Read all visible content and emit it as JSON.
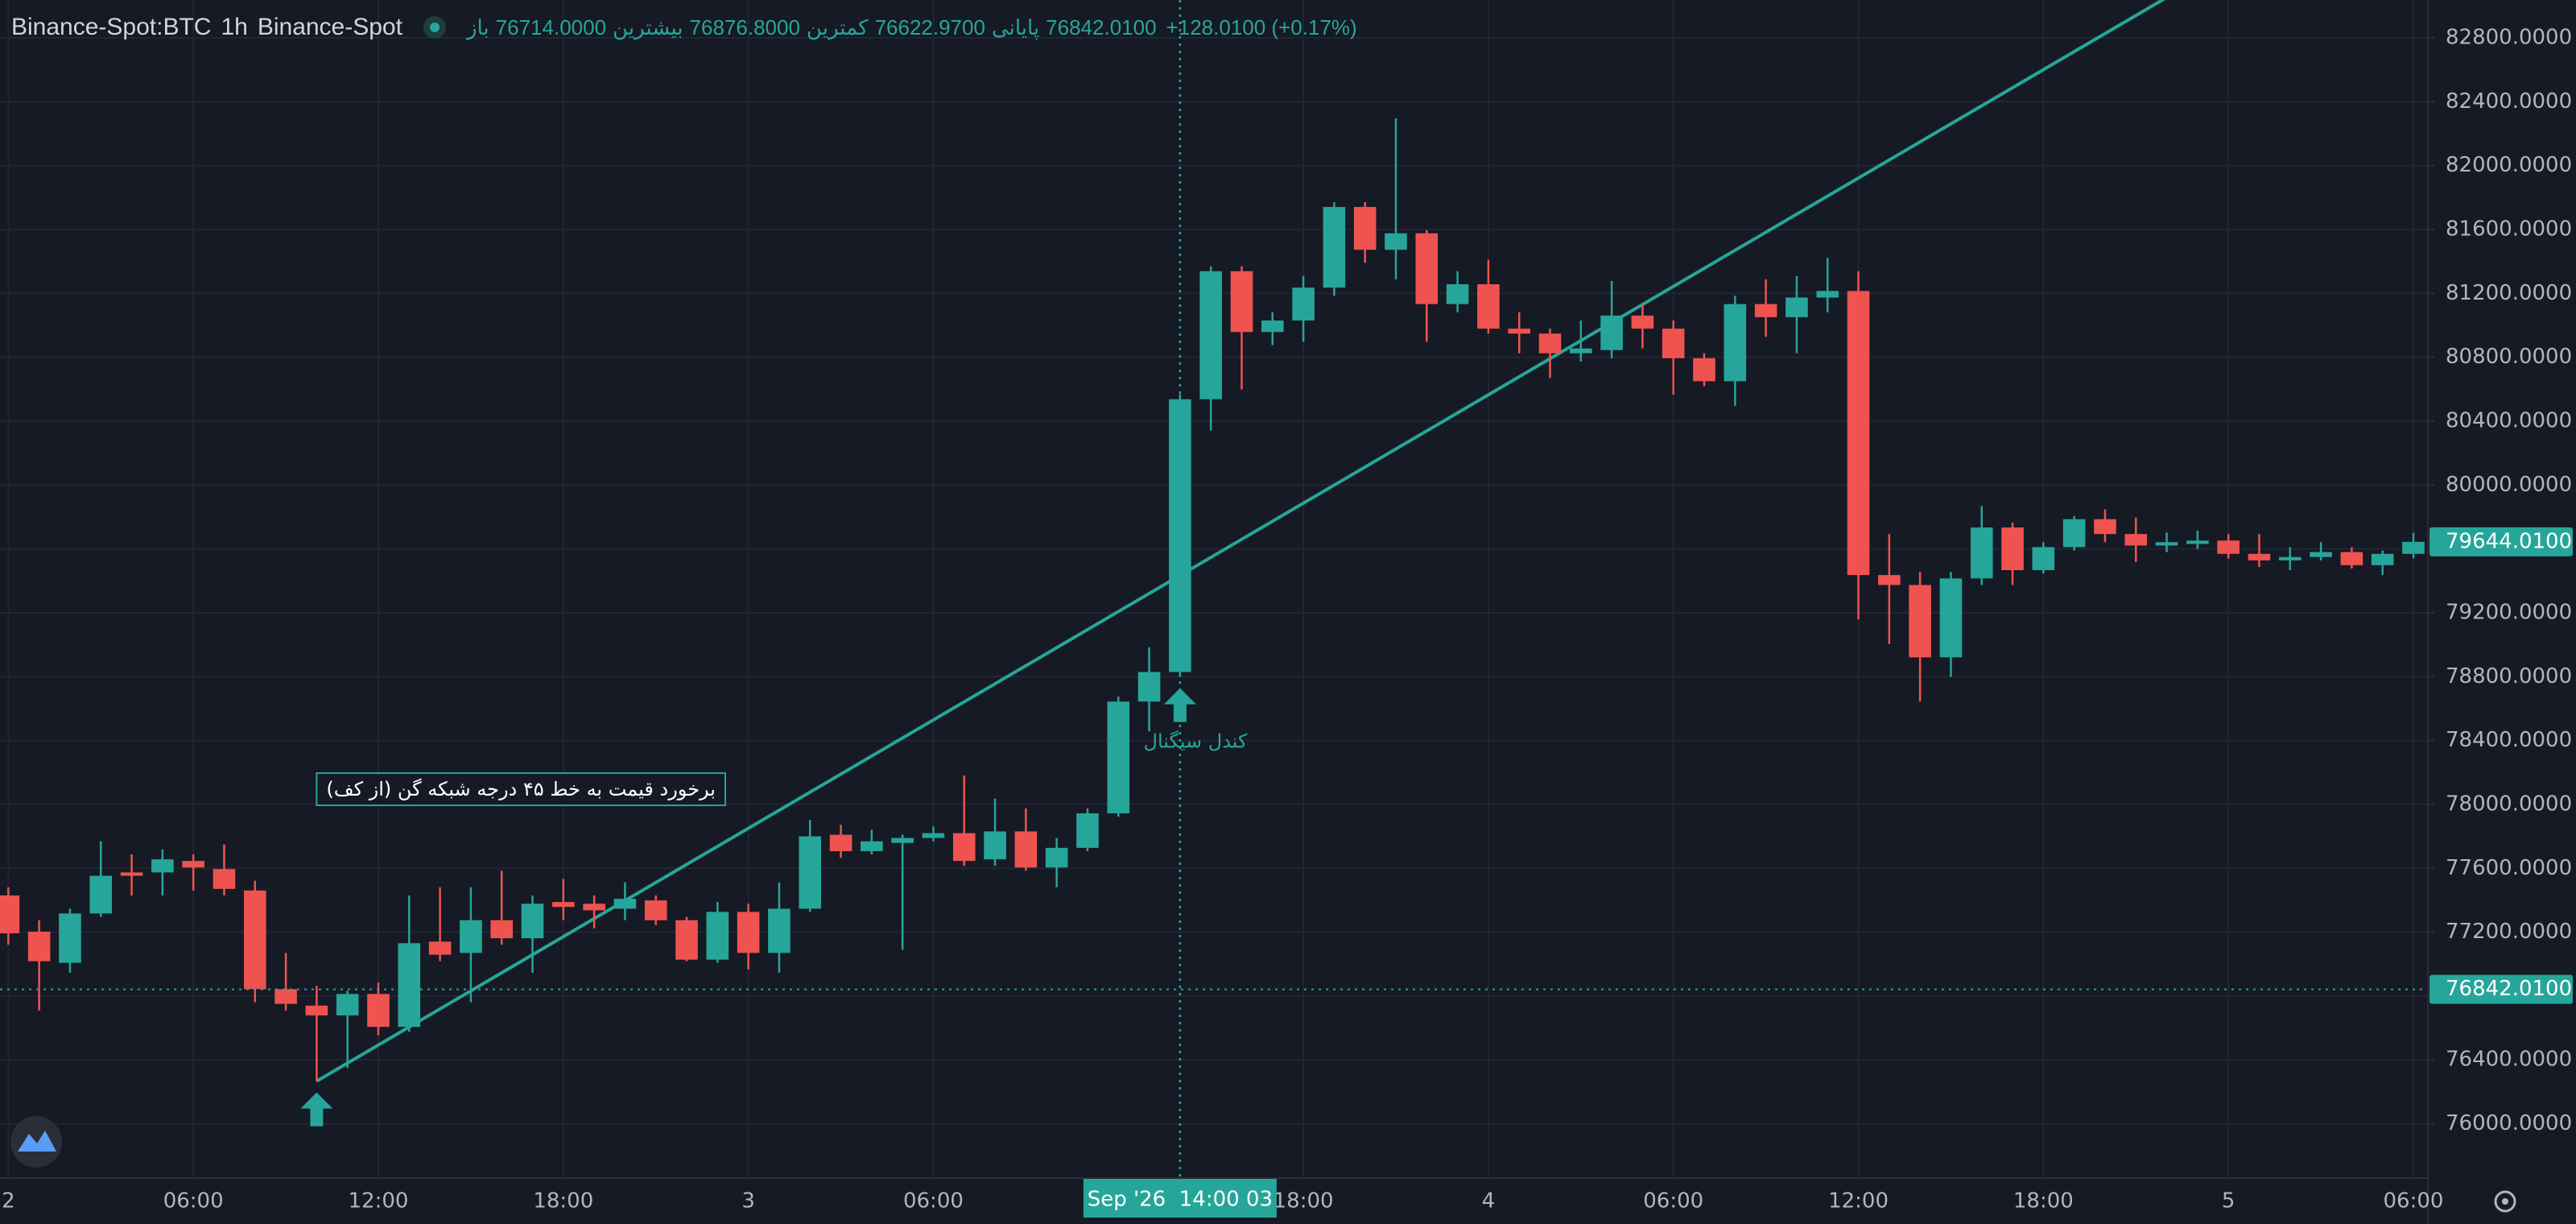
{
  "header": {
    "symbol": "Binance-Spot:BTC",
    "interval": "1h",
    "exchange": "Binance-Spot",
    "ohlc": [
      {
        "label": "باز",
        "value": "76714.0000"
      },
      {
        "label": "بیشترین",
        "value": "76876.8000"
      },
      {
        "label": "کمترین",
        "value": "76622.9700"
      },
      {
        "label": "پایانی",
        "value": "76842.0100"
      }
    ],
    "change": "+128.0100 (+0.17%)"
  },
  "chart_data": {
    "type": "candlestick",
    "colors": {
      "up": "#26a69a",
      "down": "#ef5350",
      "line": "#26a69a"
    },
    "open": [
      77430,
      77203,
      77008,
      77317,
      77574,
      77574,
      77646,
      77595,
      77461,
      76843,
      76740,
      76679,
      76813,
      76607,
      77141,
      77070,
      77275,
      77162,
      77389,
      77378,
      77347,
      77399,
      77275,
      77028,
      77327,
      77070,
      77347,
      77810,
      77707,
      77759,
      77790,
      77820,
      77656,
      77831,
      77605,
      77728,
      77944,
      78644,
      78829,
      80537,
      81339,
      80958,
      81030,
      81236,
      81741,
      81473,
      81576,
      81133,
      81257,
      80979,
      80948,
      80825,
      80845,
      81061,
      80979,
      80794,
      80650,
      81133,
      81051,
      81174,
      81215,
      79436,
      79374,
      78921,
      79415,
      79734,
      79467,
      79611,
      79786,
      79693,
      79621,
      79631,
      79652,
      79569,
      79528,
      79549,
      79580,
      79498,
      79569
    ],
    "high": [
      77481,
      77275,
      77347,
      77769,
      77687,
      77718,
      77687,
      77749,
      77522,
      77070,
      76864,
      76833,
      76884,
      77430,
      77481,
      77481,
      77584,
      77430,
      77533,
      77430,
      77512,
      77430,
      77296,
      77389,
      77378,
      77512,
      77903,
      77872,
      77841,
      77810,
      77862,
      78181,
      78037,
      77975,
      77790,
      77975,
      78675,
      78983,
      80568,
      81370,
      81370,
      81082,
      81308,
      81771,
      81771,
      82296,
      81596,
      81339,
      81411,
      81082,
      80979,
      81030,
      81277,
      81133,
      81030,
      80825,
      81185,
      81288,
      81308,
      81421,
      81339,
      79693,
      79456,
      79456,
      79868,
      79765,
      79642,
      79806,
      79847,
      79796,
      79703,
      79714,
      79693,
      79693,
      79611,
      79642,
      79611,
      79590,
      79700
    ],
    "low": [
      77121,
      76710,
      76946,
      77296,
      77430,
      77430,
      77461,
      77430,
      76761,
      76710,
      76267,
      76349,
      76555,
      76576,
      77018,
      76761,
      77121,
      76946,
      77275,
      77224,
      77275,
      77244,
      77018,
      77008,
      76966,
      76946,
      77327,
      77666,
      77687,
      77090,
      77769,
      77615,
      77615,
      77584,
      77481,
      77707,
      77923,
      78458,
      78798,
      80341,
      80598,
      80876,
      80897,
      81185,
      81391,
      81288,
      80897,
      81082,
      80948,
      80825,
      80670,
      80773,
      80794,
      80856,
      80567,
      80619,
      80496,
      80928,
      80825,
      81082,
      79158,
      79004,
      78644,
      78798,
      79374,
      79374,
      79446,
      79590,
      79642,
      79518,
      79580,
      79600,
      79539,
      79487,
      79467,
      79528,
      79477,
      79436,
      79540
    ],
    "close": [
      77193,
      77018,
      77317,
      77553,
      77553,
      77656,
      77605,
      77471,
      76843,
      76751,
      76679,
      76813,
      76607,
      77131,
      77059,
      77275,
      77162,
      77378,
      77358,
      77337,
      77409,
      77275,
      77028,
      77327,
      77070,
      77347,
      77800,
      77707,
      77769,
      77790,
      77820,
      77646,
      77831,
      77605,
      77728,
      77944,
      78644,
      78829,
      80537,
      81339,
      80958,
      81030,
      81236,
      81741,
      81473,
      81576,
      81133,
      81257,
      80979,
      80948,
      80825,
      80855,
      81061,
      80979,
      80794,
      80650,
      81133,
      81051,
      81174,
      81215,
      79436,
      79374,
      78921,
      79415,
      79734,
      79467,
      79611,
      79786,
      79693,
      79621,
      79642,
      79652,
      79569,
      79528,
      79549,
      79580,
      79498,
      79569,
      79644.01
    ],
    "xlim": [
      -0.27,
      78.47
    ],
    "xticks": [
      {
        "value": 0,
        "label": "2"
      },
      {
        "value": 6,
        "label": "06:00"
      },
      {
        "value": 12,
        "label": "12:00"
      },
      {
        "value": 18,
        "label": "18:00"
      },
      {
        "value": 24,
        "label": "3"
      },
      {
        "value": 30,
        "label": "06:00"
      },
      {
        "value": 42,
        "label": "18:00"
      },
      {
        "value": 48,
        "label": "4"
      },
      {
        "value": 54,
        "label": "06:00"
      },
      {
        "value": 60,
        "label": "12:00"
      },
      {
        "value": 66,
        "label": "18:00"
      },
      {
        "value": 72,
        "label": "5"
      },
      {
        "value": 78,
        "label": "06:00"
      }
    ],
    "ylim": [
      75660,
      83037
    ],
    "yticks": [
      {
        "value": 76000,
        "label": "76000.0000"
      },
      {
        "value": 76400,
        "label": "76400.0000"
      },
      {
        "value": 76800,
        "label": "76800.0000"
      },
      {
        "value": 77200,
        "label": "77200.0000"
      },
      {
        "value": 77600,
        "label": "77600.0000"
      },
      {
        "value": 78000,
        "label": "78000.0000"
      },
      {
        "value": 78400,
        "label": "78400.0000"
      },
      {
        "value": 78800,
        "label": "78800.0000"
      },
      {
        "value": 79200,
        "label": "79200.0000"
      },
      {
        "value": 79600,
        "label": "79600.0000"
      },
      {
        "value": 80000,
        "label": "80000.0000"
      },
      {
        "value": 80400,
        "label": "80400.0000"
      },
      {
        "value": 80800,
        "label": "80800.0000"
      },
      {
        "value": 81200,
        "label": "81200.0000"
      },
      {
        "value": 81600,
        "label": "81600.0000"
      },
      {
        "value": 82000,
        "label": "82000.0000"
      },
      {
        "value": 82400,
        "label": "82400.0000"
      },
      {
        "value": 82800,
        "label": "82800.0000"
      }
    ],
    "grid": true,
    "trend_line": {
      "x": [
        10,
        70
      ],
      "y": [
        76267,
        83053
      ]
    },
    "signal_arrows": [
      10,
      38
    ],
    "annotations": [
      {
        "text": "برخورد قیمت به خط ۴۵ درجه شبکه گن (از کف)",
        "x": 10,
        "y": 78090,
        "boxed": true
      },
      {
        "text": "کندل سیگنال",
        "x": 38.5,
        "y": 78390,
        "boxed": false
      }
    ],
    "last_price": {
      "value": 79644.01,
      "label": "79644.0100"
    },
    "crosshair": {
      "x": 38,
      "x_label": "Sep '26  14:00 03",
      "y": 76842.01,
      "y_label": "76842.0100"
    }
  }
}
